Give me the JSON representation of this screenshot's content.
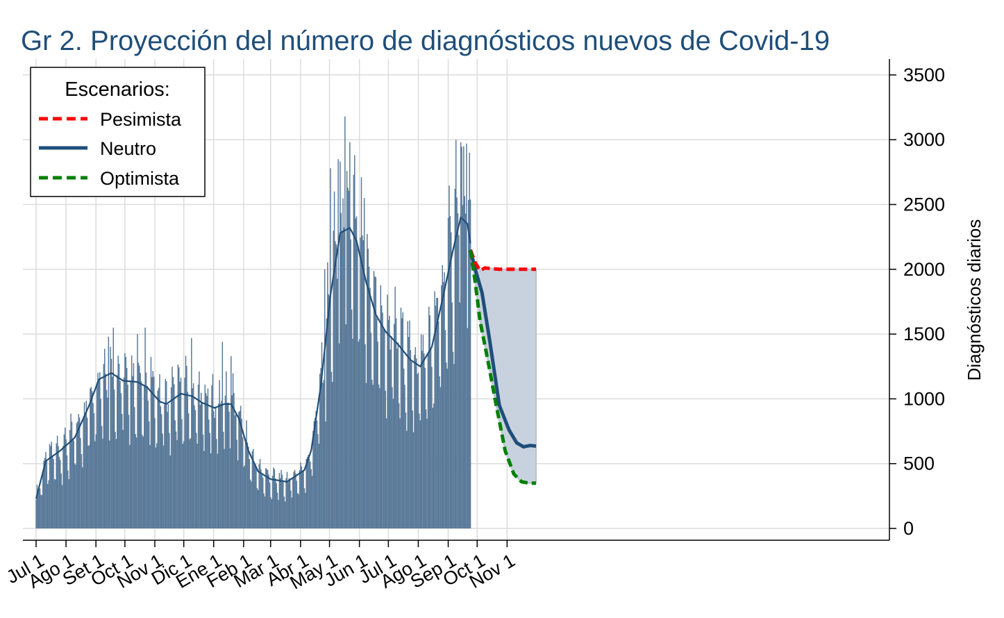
{
  "chart_data": {
    "type": "bar",
    "title": "Gr 2. Proyección del número de diagnósticos nuevos de Covid-19",
    "xlabel": "",
    "ylabel": "Diagnósticos diarios",
    "ylim": [
      0,
      3600
    ],
    "yticks": [
      0,
      500,
      1000,
      1500,
      2000,
      2500,
      3000,
      3500
    ],
    "grid": true,
    "legend": {
      "title": "Escenarios:",
      "position": "top-left",
      "entries": [
        "Pesimista",
        "Neutro",
        "Optimista"
      ]
    },
    "x_axis": {
      "start": "Jul 1",
      "ticks": [
        {
          "label": "Jul 1",
          "day": 0
        },
        {
          "label": "Ago 1",
          "day": 31
        },
        {
          "label": "Set 1",
          "day": 62
        },
        {
          "label": "Oct 1",
          "day": 92
        },
        {
          "label": "Nov 1",
          "day": 123
        },
        {
          "label": "Dic 1",
          "day": 153
        },
        {
          "label": "Ene 1",
          "day": 184
        },
        {
          "label": "Feb 1",
          "day": 215
        },
        {
          "label": "Mar 1",
          "day": 243
        },
        {
          "label": "Abr 1",
          "day": 274
        },
        {
          "label": "May 1",
          "day": 304
        },
        {
          "label": "Jun 1",
          "day": 335
        },
        {
          "label": "Jul 1",
          "day": 365
        },
        {
          "label": "Ago 1",
          "day": 396
        },
        {
          "label": "Sep 1",
          "day": 427
        },
        {
          "label": "Oct 1",
          "day": 457
        },
        {
          "label": "Nov 1",
          "day": 488
        }
      ]
    },
    "daily_cases": {
      "name": "Diagnósticos diarios",
      "color": "#5a7a99",
      "start_day": 0,
      "end_day": 450,
      "trend_knots": [
        [
          0,
          230
        ],
        [
          10,
          520
        ],
        [
          25,
          600
        ],
        [
          40,
          700
        ],
        [
          55,
          950
        ],
        [
          65,
          1150
        ],
        [
          78,
          1200
        ],
        [
          90,
          1140
        ],
        [
          105,
          1130
        ],
        [
          115,
          1090
        ],
        [
          128,
          980
        ],
        [
          135,
          960
        ],
        [
          150,
          1040
        ],
        [
          162,
          1020
        ],
        [
          172,
          970
        ],
        [
          185,
          930
        ],
        [
          195,
          960
        ],
        [
          202,
          960
        ],
        [
          210,
          850
        ],
        [
          220,
          600
        ],
        [
          230,
          440
        ],
        [
          243,
          380
        ],
        [
          260,
          360
        ],
        [
          270,
          410
        ],
        [
          278,
          450
        ],
        [
          285,
          600
        ],
        [
          295,
          1100
        ],
        [
          305,
          1800
        ],
        [
          315,
          2280
        ],
        [
          325,
          2320
        ],
        [
          332,
          2220
        ],
        [
          342,
          1900
        ],
        [
          352,
          1650
        ],
        [
          362,
          1520
        ],
        [
          375,
          1420
        ],
        [
          388,
          1300
        ],
        [
          398,
          1250
        ],
        [
          410,
          1400
        ],
        [
          422,
          1800
        ],
        [
          432,
          2150
        ],
        [
          440,
          2400
        ],
        [
          447,
          2350
        ],
        [
          450,
          2200
        ]
      ],
      "spikes": [
        [
          75,
          1480
        ],
        [
          80,
          1550
        ],
        [
          105,
          1500
        ],
        [
          113,
          1550
        ],
        [
          161,
          1470
        ],
        [
          193,
          1440
        ],
        [
          202,
          1330
        ],
        [
          299,
          2000
        ],
        [
          305,
          2780
        ],
        [
          313,
          2850
        ],
        [
          320,
          3180
        ],
        [
          325,
          2980
        ],
        [
          330,
          2880
        ],
        [
          340,
          2550
        ],
        [
          435,
          3000
        ],
        [
          440,
          2980
        ],
        [
          443,
          2950
        ],
        [
          446,
          2970
        ],
        [
          449,
          2900
        ]
      ]
    },
    "trend_line": {
      "name": "Neutro",
      "color": "#1f4e79"
    },
    "projections": {
      "start_day": 450,
      "end_day": 518,
      "fan_color": "#c8d2de",
      "series": [
        {
          "name": "Pesimista",
          "color": "#ff0000",
          "style": "dashed",
          "points": [
            [
              450,
              2150
            ],
            [
              455,
              2050
            ],
            [
              460,
              1990
            ],
            [
              465,
              2010
            ],
            [
              480,
              2000
            ],
            [
              500,
              2000
            ],
            [
              518,
              2000
            ]
          ]
        },
        {
          "name": "Neutro",
          "color": "#1f4e79",
          "style": "solid",
          "points": [
            [
              450,
              2150
            ],
            [
              455,
              2000
            ],
            [
              462,
              1820
            ],
            [
              470,
              1450
            ],
            [
              480,
              950
            ],
            [
              490,
              760
            ],
            [
              498,
              660
            ],
            [
              505,
              630
            ],
            [
              512,
              640
            ],
            [
              518,
              635
            ]
          ]
        },
        {
          "name": "Optimista",
          "color": "#008000",
          "style": "dashed",
          "points": [
            [
              450,
              2150
            ],
            [
              455,
              1900
            ],
            [
              460,
              1600
            ],
            [
              468,
              1300
            ],
            [
              476,
              980
            ],
            [
              486,
              600
            ],
            [
              495,
              420
            ],
            [
              503,
              360
            ],
            [
              510,
              350
            ],
            [
              518,
              350
            ]
          ]
        }
      ]
    }
  }
}
